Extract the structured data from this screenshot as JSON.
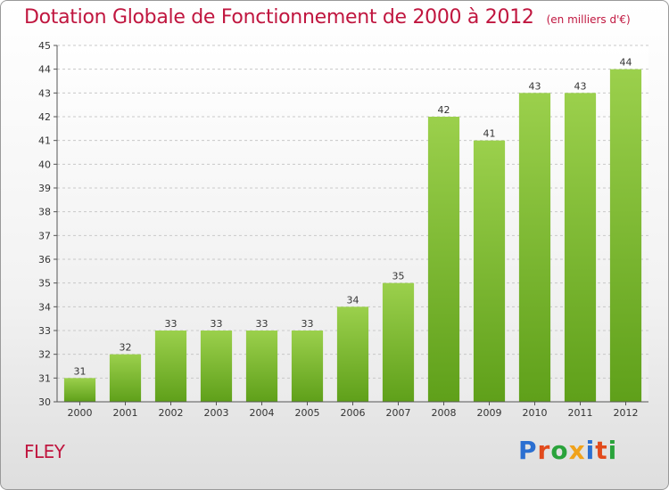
{
  "header": {
    "title": "Dotation Globale de Fonctionnement de 2000 à 2012",
    "subtitle": "(en milliers d'€)"
  },
  "footer": {
    "commune": "FLEY",
    "logo_text": "Proxiti",
    "logo_colors": [
      "#2b6fd1",
      "#e24a1c",
      "#2aa33b",
      "#f0a21b",
      "#2b6fd1",
      "#e24a1c",
      "#2aa33b"
    ]
  },
  "colors": {
    "title": "#c0163f",
    "bar_light": "#9bd04c",
    "bar_dark": "#5fa01a",
    "grid": "#c8c8c8"
  },
  "chart_data": {
    "type": "bar",
    "title": "Dotation Globale de Fonctionnement de 2000 à 2012",
    "subtitle": "(en milliers d'€)",
    "xlabel": "",
    "ylabel": "",
    "categories": [
      "2000",
      "2001",
      "2002",
      "2003",
      "2004",
      "2005",
      "2006",
      "2007",
      "2008",
      "2009",
      "2010",
      "2011",
      "2012"
    ],
    "values": [
      31,
      32,
      33,
      33,
      33,
      33,
      34,
      35,
      42,
      41,
      43,
      43,
      44
    ],
    "ylim": [
      30,
      45
    ],
    "yticks": [
      30,
      31,
      32,
      33,
      34,
      35,
      36,
      37,
      38,
      39,
      40,
      41,
      42,
      43,
      44,
      45
    ],
    "grid": true,
    "data_labels": true
  }
}
